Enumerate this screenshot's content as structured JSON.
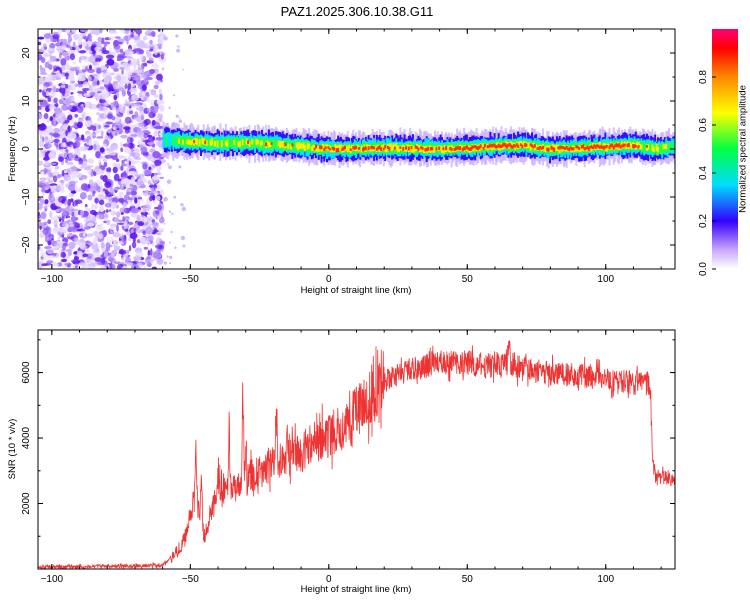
{
  "title": "PAZ1.2025.306.10.38.G11",
  "chart_data": [
    {
      "type": "heatmap",
      "xlabel": "Height of straight line (km)",
      "ylabel": "Frequency (Hz)",
      "xlim": [
        -105,
        125
      ],
      "ylim": [
        -25,
        25
      ],
      "xticks": [
        -100,
        -50,
        0,
        50,
        100
      ],
      "yticks": [
        -20,
        -10,
        0,
        10,
        20
      ],
      "colorbar": {
        "label": "Normalized spectral amplitude",
        "range": [
          0,
          1
        ],
        "ticks": [
          0.0,
          0.2,
          0.4,
          0.6,
          0.8
        ]
      },
      "noise_region_x": [
        -105,
        -60
      ],
      "signal_ridge": {
        "x": [
          -60,
          -50,
          -40,
          -30,
          -20,
          -10,
          0,
          10,
          20,
          30,
          40,
          50,
          60,
          70,
          80,
          90,
          100,
          110,
          118,
          125
        ],
        "frequency": [
          1.8,
          1.5,
          1.2,
          1.3,
          1.0,
          0.5,
          0.0,
          0.1,
          0.3,
          0.2,
          0.0,
          0.2,
          0.6,
          0.8,
          0.0,
          0.2,
          0.5,
          0.8,
          0.0,
          0.5
        ],
        "amplitude": [
          0.45,
          0.75,
          0.65,
          0.7,
          0.72,
          0.7,
          0.85,
          0.8,
          0.85,
          0.8,
          0.82,
          0.85,
          0.9,
          0.9,
          0.88,
          0.85,
          0.88,
          0.85,
          0.65,
          0.55
        ]
      }
    },
    {
      "type": "line",
      "xlabel": "Height of straight line (km)",
      "ylabel": "SNR (10 * v/v)",
      "xlim": [
        -105,
        125
      ],
      "ylim": [
        0,
        7300
      ],
      "xticks": [
        -100,
        -50,
        0,
        50,
        100
      ],
      "yticks": [
        2000,
        4000,
        6000
      ],
      "color": "#ee3333",
      "x": [
        -105,
        -100,
        -90,
        -80,
        -70,
        -60,
        -56,
        -52,
        -50,
        -48,
        -45,
        -40,
        -35,
        -30,
        -25,
        -20,
        -15,
        -10,
        -5,
        0,
        5,
        10,
        15,
        20,
        25,
        30,
        40,
        50,
        60,
        65,
        70,
        80,
        90,
        100,
        105,
        110,
        116,
        117,
        118,
        120,
        125
      ],
      "y": [
        50,
        60,
        70,
        80,
        90,
        120,
        400,
        900,
        1800,
        2200,
        1000,
        2500,
        2400,
        2800,
        2900,
        3200,
        3400,
        3600,
        3900,
        4100,
        4400,
        4800,
        5200,
        5700,
        5900,
        6100,
        6300,
        6300,
        6200,
        6300,
        6100,
        6000,
        5900,
        5800,
        5700,
        5700,
        5650,
        3300,
        2800,
        2800,
        2700
      ],
      "spikes": [
        {
          "x": -48,
          "y": 4300
        },
        {
          "x": -46,
          "y": 3200
        },
        {
          "x": -40,
          "y": 3000
        },
        {
          "x": -36,
          "y": 4700
        },
        {
          "x": -31,
          "y": 5700
        },
        {
          "x": -30,
          "y": 3500
        },
        {
          "x": -19,
          "y": 5400
        },
        {
          "x": -15,
          "y": 4000
        },
        {
          "x": 65,
          "y": 7300
        },
        {
          "x": 97,
          "y": 6700
        }
      ]
    }
  ]
}
